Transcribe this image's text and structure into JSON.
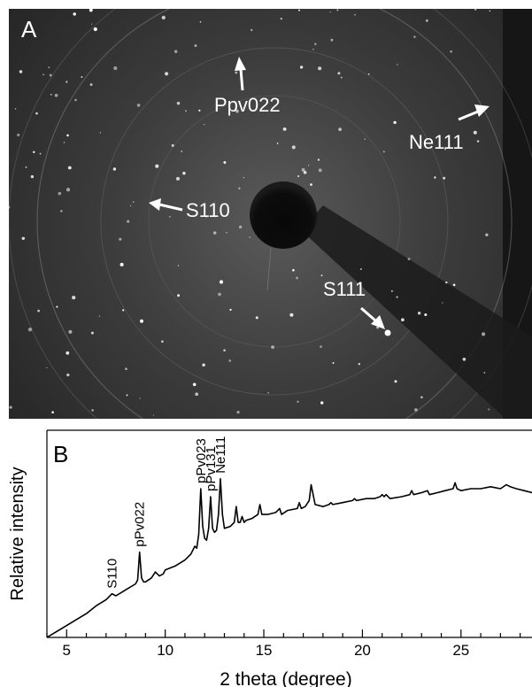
{
  "panel_a": {
    "label": "A",
    "annotations": [
      {
        "name": "ppv022",
        "text": "Ppv022"
      },
      {
        "name": "ne111",
        "text": "Ne111"
      },
      {
        "name": "s110",
        "text": "S110"
      },
      {
        "name": "s111",
        "text": "S111"
      }
    ]
  },
  "panel_b": {
    "label": "B"
  },
  "chart_data": {
    "type": "line",
    "xlabel": "2 theta (degree)",
    "ylabel": "Relative intensity",
    "xlim": [
      4,
      28.6
    ],
    "ylim": [
      0,
      1
    ],
    "xticks": [
      5,
      10,
      15,
      20,
      25
    ],
    "grid": false,
    "peak_labels": [
      {
        "text": "S110",
        "x": 7.3
      },
      {
        "text": "pPv022",
        "x": 8.7
      },
      {
        "text": "pPv023",
        "x": 11.8
      },
      {
        "text": "pPv131",
        "x": 12.3
      },
      {
        "text": "Ne111",
        "x": 12.8
      }
    ],
    "series": [
      {
        "x": [
          4.0,
          4.5,
          5.0,
          5.5,
          6.0,
          6.5,
          7.0,
          7.3,
          7.5,
          8.0,
          8.5,
          8.6,
          8.7,
          8.8,
          8.9,
          9.0,
          9.3,
          9.5,
          9.7,
          9.9,
          10.0,
          10.5,
          11.0,
          11.3,
          11.5,
          11.6,
          11.7,
          11.8,
          11.9,
          12.0,
          12.1,
          12.2,
          12.3,
          12.4,
          12.5,
          12.6,
          12.7,
          12.8,
          12.9,
          13.0,
          13.3,
          13.5,
          13.6,
          13.7,
          13.8,
          13.9,
          14.0,
          14.1,
          14.4,
          14.7,
          14.8,
          14.9,
          15.2,
          15.6,
          15.8,
          15.9,
          16.2,
          16.7,
          16.8,
          16.9,
          17.1,
          17.3,
          17.4,
          17.6,
          18.0,
          18.3,
          18.4,
          18.5,
          19.0,
          19.5,
          19.6,
          19.7,
          20.2,
          20.6,
          20.9,
          21.0,
          21.1,
          21.2,
          21.4,
          22.0,
          22.4,
          22.5,
          22.6,
          23.0,
          23.3,
          23.4,
          23.8,
          24.2,
          24.6,
          24.7,
          24.8,
          25.0,
          25.5,
          25.8,
          26.0,
          26.5,
          27.0,
          27.3,
          27.5,
          27.8,
          28.2,
          28.6
        ],
        "y": [
          0.0,
          0.03,
          0.06,
          0.09,
          0.12,
          0.16,
          0.19,
          0.22,
          0.21,
          0.24,
          0.27,
          0.29,
          0.43,
          0.3,
          0.28,
          0.28,
          0.3,
          0.33,
          0.31,
          0.32,
          0.34,
          0.36,
          0.39,
          0.42,
          0.46,
          0.45,
          0.52,
          0.75,
          0.56,
          0.5,
          0.49,
          0.55,
          0.71,
          0.55,
          0.53,
          0.54,
          0.62,
          0.8,
          0.62,
          0.55,
          0.56,
          0.58,
          0.66,
          0.58,
          0.58,
          0.61,
          0.58,
          0.59,
          0.6,
          0.62,
          0.67,
          0.62,
          0.62,
          0.63,
          0.65,
          0.62,
          0.64,
          0.65,
          0.68,
          0.65,
          0.66,
          0.69,
          0.77,
          0.67,
          0.66,
          0.67,
          0.68,
          0.67,
          0.68,
          0.69,
          0.7,
          0.69,
          0.7,
          0.7,
          0.71,
          0.72,
          0.71,
          0.72,
          0.7,
          0.71,
          0.72,
          0.74,
          0.72,
          0.73,
          0.74,
          0.72,
          0.73,
          0.74,
          0.75,
          0.78,
          0.75,
          0.74,
          0.75,
          0.75,
          0.75,
          0.76,
          0.75,
          0.77,
          0.76,
          0.75,
          0.74,
          0.73
        ]
      }
    ]
  }
}
